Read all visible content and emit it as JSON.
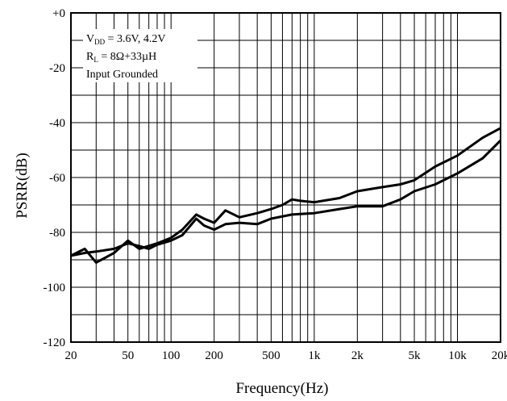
{
  "chart_data": {
    "type": "line",
    "xlabel": "Frequency(Hz)",
    "ylabel": "PSRR(dB)",
    "x_scale": "log",
    "xlim": [
      20,
      20000
    ],
    "ylim": [
      -120,
      0
    ],
    "grid": true,
    "x_ticks": [
      20,
      50,
      100,
      200,
      500,
      1000,
      2000,
      5000,
      10000,
      20000
    ],
    "x_tick_labels": [
      "20",
      "50",
      "100",
      "200",
      "500",
      "1k",
      "2k",
      "5k",
      "10k",
      "20k"
    ],
    "y_ticks": [
      0,
      -20,
      -40,
      -60,
      -80,
      -100,
      -120
    ],
    "y_tick_labels": [
      "+0",
      "-20",
      "-40",
      "-60",
      "-80",
      "-100",
      "-120"
    ],
    "annotations": {
      "line1_main": "V",
      "line1_sub": "DD",
      "line1_rest": " = 3.6V, 4.2V",
      "line2_main": "R",
      "line2_sub": "L",
      "line2_rest": " = 8Ω+33µH",
      "line3": "Input Grounded"
    },
    "series": [
      {
        "x": [
          20,
          25,
          30,
          40,
          50,
          60,
          80,
          100,
          120,
          150,
          170,
          200,
          240,
          300,
          400,
          500,
          600,
          700,
          800,
          1000,
          1500,
          2000,
          3000,
          4000,
          5000,
          7000,
          10000,
          15000,
          20000
        ],
        "y": [
          -88.5,
          -86,
          -91,
          -87.5,
          -83,
          -86,
          -84,
          -82,
          -79,
          -73.5,
          -75,
          -76.5,
          -72,
          -74.5,
          -73,
          -71.5,
          -70,
          -68,
          -68.5,
          -69,
          -67.5,
          -65,
          -63.5,
          -62.5,
          -61,
          -56,
          -52,
          -45.5,
          -42
        ]
      },
      {
        "x": [
          20,
          25,
          30,
          40,
          50,
          60,
          70,
          80,
          100,
          120,
          150,
          170,
          200,
          240,
          300,
          400,
          500,
          700,
          1000,
          1500,
          2000,
          3000,
          4000,
          5000,
          7000,
          10000,
          15000,
          20000
        ],
        "y": [
          -88.5,
          -87.5,
          -87,
          -86,
          -84,
          -85,
          -86,
          -84.5,
          -83,
          -81,
          -75,
          -77.5,
          -79,
          -77,
          -76.5,
          -77,
          -75,
          -73.5,
          -73,
          -71.5,
          -70.5,
          -70.5,
          -68,
          -65,
          -62.5,
          -58.5,
          -53,
          -46.5
        ]
      }
    ]
  }
}
